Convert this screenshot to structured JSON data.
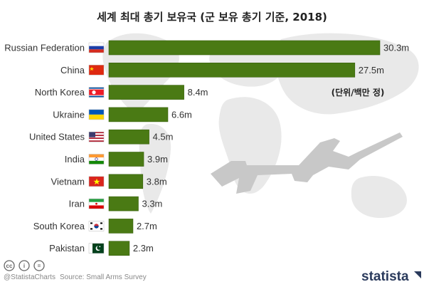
{
  "chart_data": {
    "type": "bar",
    "orientation": "horizontal",
    "title": "세계 최대 총기 보유국 (군 보유 총기 기준, 2018)",
    "unit_note": "(단위/백만 정)",
    "categories": [
      "Russian Federation",
      "China",
      "North Korea",
      "Ukraine",
      "United States",
      "India",
      "Vietnam",
      "Iran",
      "South Korea",
      "Pakistan"
    ],
    "values": [
      30.3,
      27.5,
      8.4,
      6.6,
      4.5,
      3.9,
      3.8,
      3.3,
      2.7,
      2.3
    ],
    "value_labels": [
      "30.3m",
      "27.5m",
      "8.4m",
      "6.6m",
      "4.5m",
      "3.9m",
      "3.8m",
      "3.3m",
      "2.7m",
      "2.3m"
    ],
    "flags": [
      "flag-russia",
      "flag-china",
      "flag-north-korea",
      "flag-ukraine",
      "flag-united-states",
      "flag-india",
      "flag-vietnam",
      "flag-iran",
      "flag-south-korea",
      "flag-pakistan"
    ],
    "xlim": [
      0,
      30.3
    ],
    "grid": false,
    "bar_color": "#4a7a14"
  },
  "footer": {
    "handle": "@StatistaCharts",
    "source": "Source: Small Arms Survey",
    "brand": "statista",
    "cc_icons": [
      "cc",
      "i",
      "="
    ]
  },
  "background": {
    "map_color": "#e9e9e9",
    "gun_color": "#c8c8c8"
  }
}
